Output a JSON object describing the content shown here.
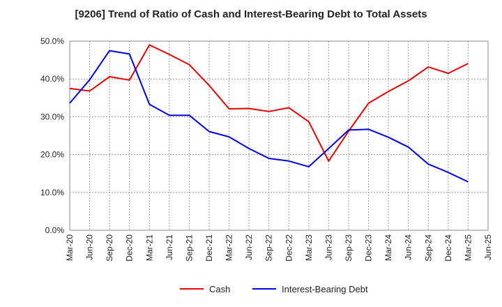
{
  "chart_data": {
    "type": "line",
    "title": "[9206]  Trend of Ratio of Cash and Interest-Bearing Debt to Total Assets",
    "x": [
      "Mar-20",
      "Jun-20",
      "Sep-20",
      "Dec-20",
      "Mar-21",
      "Jun-21",
      "Sep-21",
      "Dec-21",
      "Mar-22",
      "Jun-22",
      "Sep-22",
      "Dec-22",
      "Mar-23",
      "Jun-23",
      "Sep-23",
      "Dec-23",
      "Mar-24",
      "Jun-24",
      "Sep-24",
      "Dec-24",
      "Mar-25",
      "Jun-25"
    ],
    "y_ticks": [
      "0.0%",
      "10.0%",
      "20.0%",
      "30.0%",
      "40.0%",
      "50.0%"
    ],
    "ylim": [
      0,
      50
    ],
    "grid": true,
    "legend_position": "bottom",
    "series": [
      {
        "name": "Cash",
        "color": "#e60000",
        "values": [
          37.5,
          36.8,
          40.6,
          39.7,
          49.0,
          46.5,
          43.8,
          38.3,
          32.1,
          32.2,
          31.4,
          32.4,
          28.7,
          18.3,
          26.2,
          33.6,
          36.7,
          39.5,
          43.2,
          41.5,
          44.1,
          null
        ]
      },
      {
        "name": "Interest-Bearing Debt",
        "color": "#0000e6",
        "values": [
          33.6,
          39.8,
          47.5,
          46.6,
          33.3,
          30.4,
          30.4,
          26.1,
          24.7,
          21.6,
          19.0,
          18.3,
          16.8,
          21.6,
          26.5,
          26.7,
          24.6,
          22.0,
          17.5,
          15.3,
          12.8,
          null
        ]
      }
    ]
  }
}
